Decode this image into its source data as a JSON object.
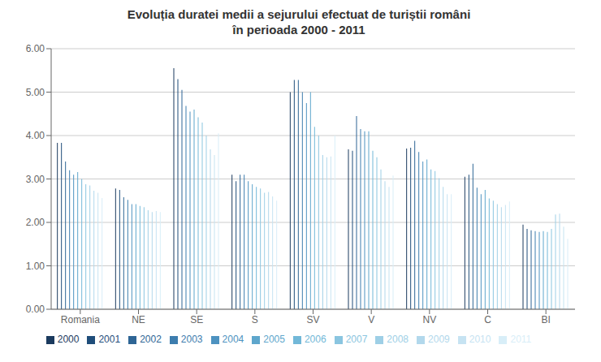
{
  "chart_data": {
    "type": "bar",
    "title": "Evoluția duratei medii a sejurului efectuat de turiștii români\nîn perioada 2000 - 2011",
    "categories": [
      "Romania",
      "NE",
      "SE",
      "S",
      "SV",
      "V",
      "NV",
      "C",
      "BI"
    ],
    "series": [
      {
        "name": "2000",
        "color": "#1b3a5e",
        "values": [
          3.83,
          2.78,
          5.55,
          3.1,
          5.0,
          3.68,
          3.7,
          3.05,
          1.95
        ]
      },
      {
        "name": "2001",
        "color": "#1f4d7a",
        "values": [
          3.83,
          2.75,
          5.3,
          2.95,
          5.28,
          3.65,
          3.72,
          3.1,
          1.85
        ]
      },
      {
        "name": "2002",
        "color": "#2e6595",
        "values": [
          3.4,
          2.58,
          5.05,
          3.1,
          5.28,
          4.45,
          3.88,
          3.35,
          1.82
        ]
      },
      {
        "name": "2003",
        "color": "#3d7dae",
        "values": [
          3.2,
          2.52,
          4.68,
          3.1,
          5.0,
          4.15,
          3.62,
          2.8,
          1.8
        ]
      },
      {
        "name": "2004",
        "color": "#4d92c0",
        "values": [
          3.1,
          2.42,
          4.55,
          2.95,
          4.75,
          4.1,
          3.4,
          2.65,
          1.78
        ]
      },
      {
        "name": "2005",
        "color": "#5ea6cc",
        "values": [
          3.16,
          2.42,
          4.6,
          2.88,
          5.0,
          4.1,
          3.45,
          2.75,
          1.8
        ]
      },
      {
        "name": "2006",
        "color": "#72b8d8",
        "values": [
          3.0,
          2.38,
          4.42,
          2.82,
          4.2,
          3.65,
          3.22,
          2.55,
          1.78
        ]
      },
      {
        "name": "2007",
        "color": "#8ac5e0",
        "values": [
          2.88,
          2.35,
          4.3,
          2.78,
          4.0,
          3.5,
          3.18,
          2.5,
          1.85
        ]
      },
      {
        "name": "2008",
        "color": "#9ecfe6",
        "values": [
          2.85,
          2.28,
          4.0,
          2.68,
          3.55,
          3.22,
          3.02,
          2.42,
          2.18
        ]
      },
      {
        "name": "2009",
        "color": "#b2d8ec",
        "values": [
          2.73,
          2.24,
          3.68,
          2.7,
          3.5,
          2.95,
          2.82,
          2.35,
          2.2
        ]
      },
      {
        "name": "2010",
        "color": "#c6e3f2",
        "values": [
          2.68,
          2.26,
          3.55,
          2.6,
          3.52,
          2.82,
          2.65,
          2.4,
          1.9
        ]
      },
      {
        "name": "2011",
        "color": "#d8eef8",
        "values": [
          2.56,
          2.24,
          4.05,
          2.5,
          4.0,
          3.08,
          2.65,
          2.48,
          1.62
        ]
      }
    ],
    "ylim": [
      0.0,
      6.0
    ],
    "yticks": [
      {
        "value": 0.0,
        "label": "0.00"
      },
      {
        "value": 1.0,
        "label": "1.00"
      },
      {
        "value": 2.0,
        "label": "2.00"
      },
      {
        "value": 3.0,
        "label": "3.00"
      },
      {
        "value": 4.0,
        "label": "4.00"
      },
      {
        "value": 5.0,
        "label": "5.00"
      },
      {
        "value": 6.0,
        "label": "6.00"
      }
    ],
    "grid": true,
    "legend": "bottom"
  }
}
